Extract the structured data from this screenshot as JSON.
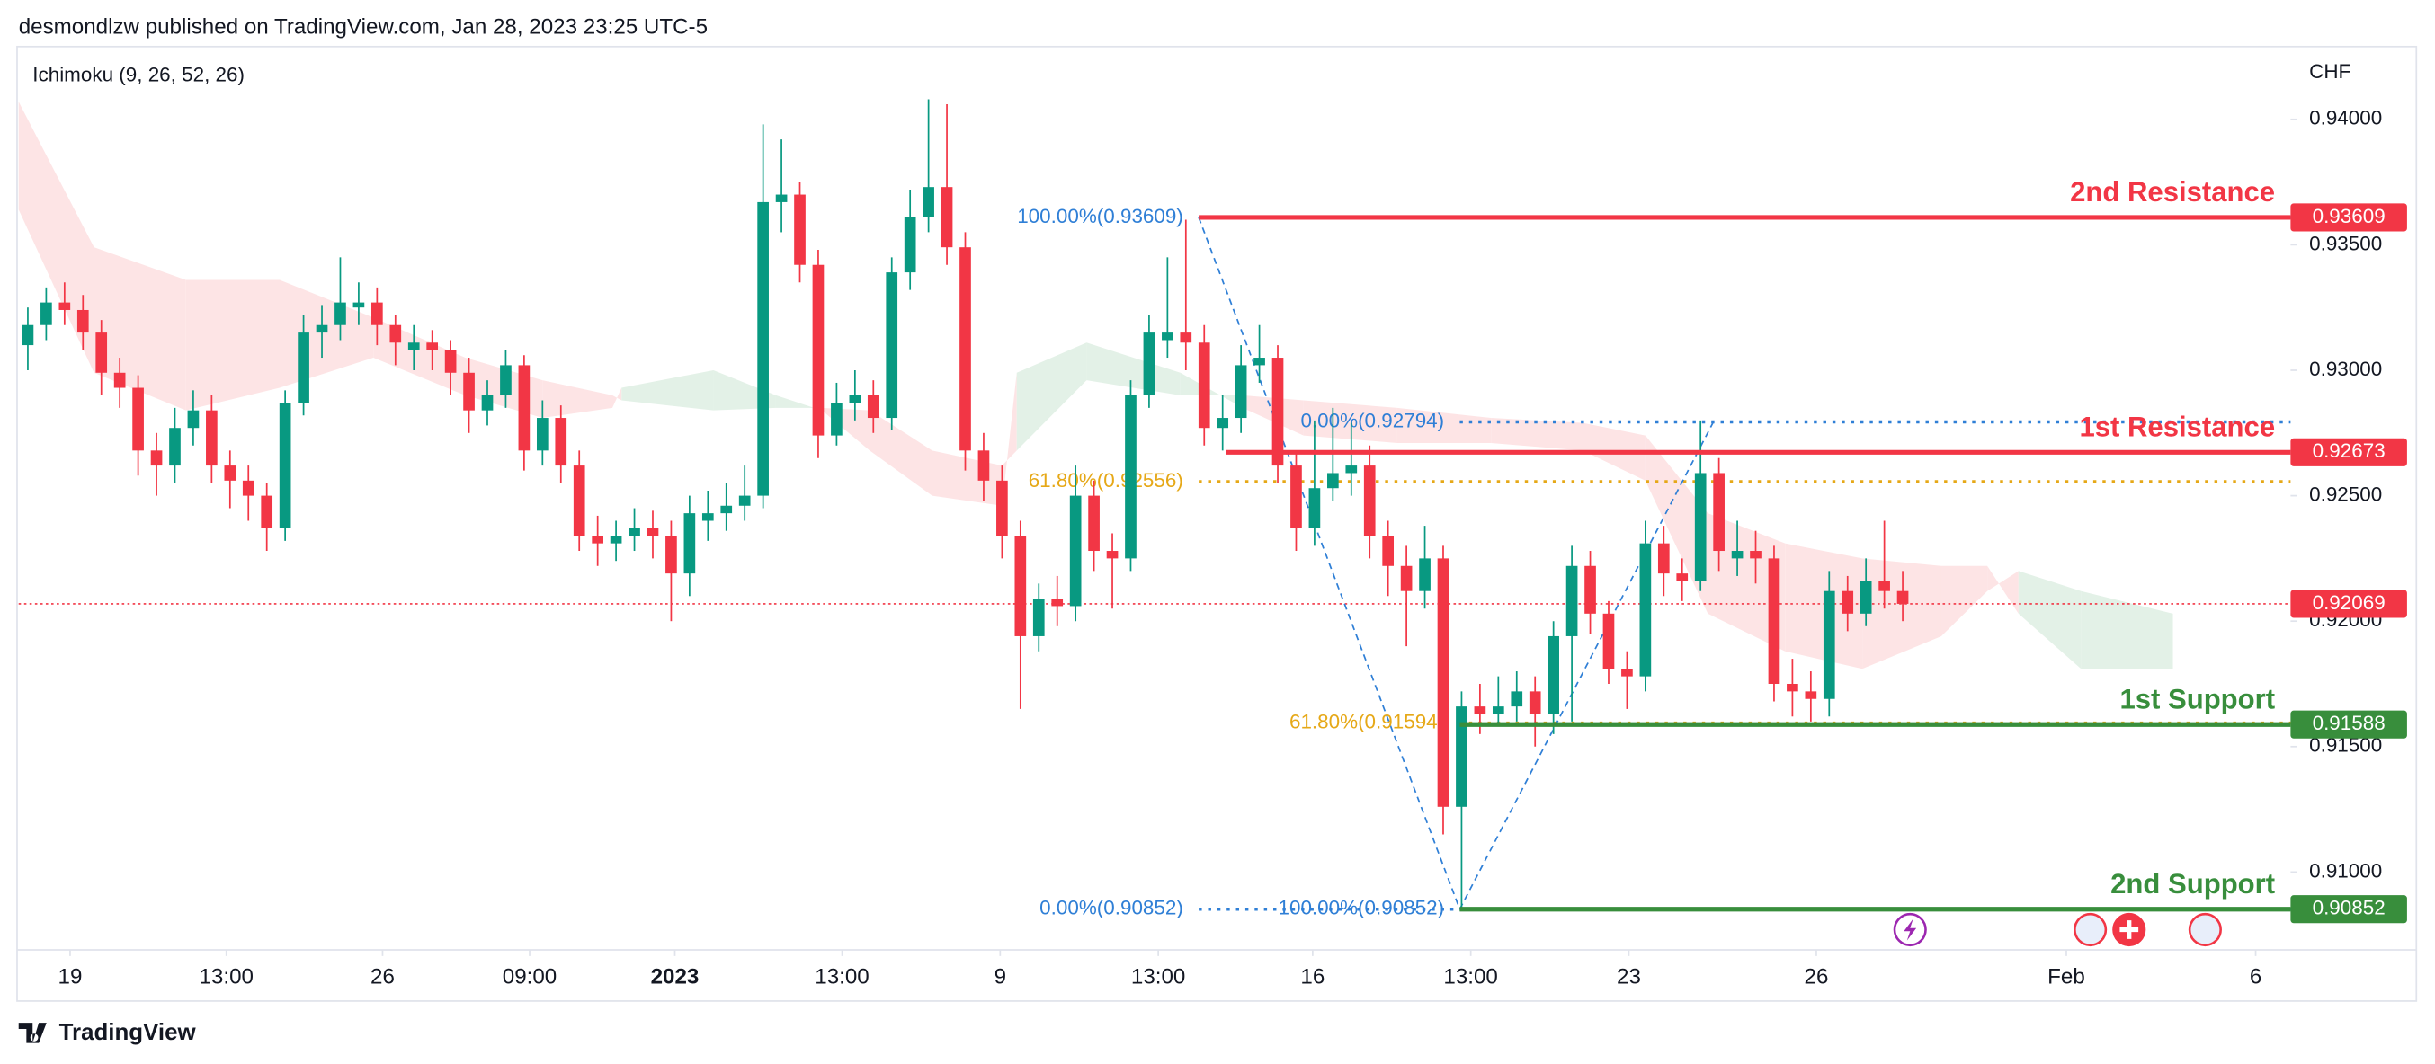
{
  "chart_data": {
    "type": "candlestick",
    "header": "desmondlzw published on TradingView.com, Jan 28, 2023 23:25 UTC-5",
    "indicator": "Ichimoku (9, 26, 52, 26)",
    "currency": "CHF",
    "brand": "TradingView",
    "up_color": "#089981",
    "down_color": "#f23645",
    "candles": [
      [
        0.931,
        0.9325,
        0.93,
        0.9318
      ],
      [
        0.9318,
        0.9333,
        0.9312,
        0.9327
      ],
      [
        0.9327,
        0.9335,
        0.9318,
        0.9324
      ],
      [
        0.9324,
        0.933,
        0.9308,
        0.9315
      ],
      [
        0.9315,
        0.932,
        0.929,
        0.9299
      ],
      [
        0.9299,
        0.9305,
        0.9285,
        0.9293
      ],
      [
        0.9293,
        0.9298,
        0.9258,
        0.9268
      ],
      [
        0.9268,
        0.9275,
        0.925,
        0.9262
      ],
      [
        0.9262,
        0.9285,
        0.9255,
        0.9277
      ],
      [
        0.9277,
        0.9292,
        0.927,
        0.9284
      ],
      [
        0.9284,
        0.929,
        0.9255,
        0.9262
      ],
      [
        0.9262,
        0.9268,
        0.9245,
        0.9256
      ],
      [
        0.9256,
        0.9262,
        0.924,
        0.925
      ],
      [
        0.925,
        0.9255,
        0.9228,
        0.9237
      ],
      [
        0.9237,
        0.9292,
        0.9232,
        0.9287
      ],
      [
        0.9287,
        0.9322,
        0.9282,
        0.9315
      ],
      [
        0.9315,
        0.9326,
        0.9305,
        0.9318
      ],
      [
        0.9318,
        0.9345,
        0.9312,
        0.9327
      ],
      [
        0.9325,
        0.9335,
        0.9318,
        0.9327
      ],
      [
        0.9327,
        0.9333,
        0.931,
        0.9318
      ],
      [
        0.9318,
        0.9322,
        0.9302,
        0.9311
      ],
      [
        0.9308,
        0.9318,
        0.93,
        0.9311
      ],
      [
        0.9311,
        0.9316,
        0.93,
        0.9308
      ],
      [
        0.9308,
        0.9312,
        0.929,
        0.9299
      ],
      [
        0.9299,
        0.9305,
        0.9275,
        0.9284
      ],
      [
        0.9284,
        0.9296,
        0.9278,
        0.929
      ],
      [
        0.929,
        0.9308,
        0.9285,
        0.9302
      ],
      [
        0.9302,
        0.9306,
        0.926,
        0.9268
      ],
      [
        0.9268,
        0.9288,
        0.9262,
        0.9281
      ],
      [
        0.9281,
        0.9286,
        0.9255,
        0.9262
      ],
      [
        0.9262,
        0.9268,
        0.9228,
        0.9234
      ],
      [
        0.9234,
        0.9242,
        0.9222,
        0.9231
      ],
      [
        0.9231,
        0.924,
        0.9224,
        0.9234
      ],
      [
        0.9234,
        0.9245,
        0.9228,
        0.9237
      ],
      [
        0.9237,
        0.9244,
        0.9225,
        0.9234
      ],
      [
        0.9234,
        0.924,
        0.92,
        0.9219
      ],
      [
        0.9219,
        0.925,
        0.921,
        0.9243
      ],
      [
        0.924,
        0.9252,
        0.9232,
        0.9243
      ],
      [
        0.9243,
        0.9255,
        0.9236,
        0.9246
      ],
      [
        0.9246,
        0.9262,
        0.924,
        0.925
      ],
      [
        0.925,
        0.9398,
        0.9245,
        0.9367
      ],
      [
        0.9367,
        0.9392,
        0.9355,
        0.937
      ],
      [
        0.937,
        0.9375,
        0.9335,
        0.9342
      ],
      [
        0.9342,
        0.9348,
        0.9265,
        0.9274
      ],
      [
        0.9274,
        0.9295,
        0.927,
        0.9287
      ],
      [
        0.9287,
        0.93,
        0.928,
        0.929
      ],
      [
        0.929,
        0.9296,
        0.9275,
        0.9281
      ],
      [
        0.9281,
        0.9345,
        0.9276,
        0.9339
      ],
      [
        0.9339,
        0.9372,
        0.9332,
        0.9361
      ],
      [
        0.9361,
        0.9408,
        0.9355,
        0.9373
      ],
      [
        0.9373,
        0.9406,
        0.9342,
        0.9349
      ],
      [
        0.9349,
        0.9355,
        0.926,
        0.9268
      ],
      [
        0.9268,
        0.9275,
        0.9248,
        0.9256
      ],
      [
        0.9256,
        0.9262,
        0.9225,
        0.9234
      ],
      [
        0.9234,
        0.924,
        0.9165,
        0.9194
      ],
      [
        0.9194,
        0.9215,
        0.9188,
        0.9209
      ],
      [
        0.9209,
        0.9218,
        0.9198,
        0.9206
      ],
      [
        0.9206,
        0.9262,
        0.92,
        0.925
      ],
      [
        0.925,
        0.9256,
        0.922,
        0.9228
      ],
      [
        0.9228,
        0.9235,
        0.9205,
        0.9225
      ],
      [
        0.9225,
        0.9296,
        0.922,
        0.929
      ],
      [
        0.929,
        0.9322,
        0.9285,
        0.9315
      ],
      [
        0.9312,
        0.9345,
        0.9305,
        0.9315
      ],
      [
        0.9315,
        0.936,
        0.93,
        0.9311
      ],
      [
        0.9311,
        0.9318,
        0.927,
        0.9277
      ],
      [
        0.9277,
        0.929,
        0.9268,
        0.9281
      ],
      [
        0.9281,
        0.931,
        0.9275,
        0.9302
      ],
      [
        0.9302,
        0.9318,
        0.9295,
        0.9305
      ],
      [
        0.9305,
        0.931,
        0.9255,
        0.9262
      ],
      [
        0.9262,
        0.9268,
        0.9228,
        0.9237
      ],
      [
        0.9237,
        0.928,
        0.923,
        0.9253
      ],
      [
        0.9253,
        0.9285,
        0.9248,
        0.9259
      ],
      [
        0.9259,
        0.9279,
        0.925,
        0.9262
      ],
      [
        0.9262,
        0.927,
        0.9225,
        0.9234
      ],
      [
        0.9234,
        0.924,
        0.921,
        0.9222
      ],
      [
        0.9222,
        0.923,
        0.919,
        0.9212
      ],
      [
        0.9212,
        0.9238,
        0.9205,
        0.9225
      ],
      [
        0.9225,
        0.923,
        0.9115,
        0.9126
      ],
      [
        0.9126,
        0.9172,
        0.9085,
        0.9166
      ],
      [
        0.9166,
        0.9175,
        0.9155,
        0.9163
      ],
      [
        0.9163,
        0.9178,
        0.9158,
        0.9166
      ],
      [
        0.9166,
        0.918,
        0.916,
        0.9172
      ],
      [
        0.9172,
        0.9178,
        0.915,
        0.9163
      ],
      [
        0.9163,
        0.92,
        0.9155,
        0.9194
      ],
      [
        0.9194,
        0.923,
        0.916,
        0.9222
      ],
      [
        0.9222,
        0.9228,
        0.9195,
        0.9203
      ],
      [
        0.9203,
        0.9208,
        0.9175,
        0.9181
      ],
      [
        0.9181,
        0.9188,
        0.9165,
        0.9178
      ],
      [
        0.9178,
        0.924,
        0.9172,
        0.9231
      ],
      [
        0.9231,
        0.9238,
        0.921,
        0.9219
      ],
      [
        0.9219,
        0.9225,
        0.9208,
        0.9216
      ],
      [
        0.9216,
        0.928,
        0.9212,
        0.9259
      ],
      [
        0.9259,
        0.9265,
        0.922,
        0.9228
      ],
      [
        0.9225,
        0.924,
        0.9218,
        0.9228
      ],
      [
        0.9228,
        0.9236,
        0.9215,
        0.9225
      ],
      [
        0.9225,
        0.923,
        0.9168,
        0.9175
      ],
      [
        0.9175,
        0.9185,
        0.9162,
        0.9172
      ],
      [
        0.9172,
        0.918,
        0.916,
        0.9169
      ],
      [
        0.9169,
        0.922,
        0.9162,
        0.9212
      ],
      [
        0.9212,
        0.9218,
        0.9196,
        0.9203
      ],
      [
        0.9203,
        0.9225,
        0.9198,
        0.9216
      ],
      [
        0.9216,
        0.924,
        0.9205,
        0.9212
      ],
      [
        0.9212,
        0.922,
        0.92,
        0.92069
      ]
    ],
    "xlim": [
      -0.5,
      123.1
    ],
    "xticks": [
      {
        "value": 2.3,
        "label": "19"
      },
      {
        "value": 10.8,
        "label": "13:00"
      },
      {
        "value": 19.3,
        "label": "26"
      },
      {
        "value": 27.3,
        "label": "09:00"
      },
      {
        "value": 35.2,
        "label": "2023"
      },
      {
        "value": 44.3,
        "label": "13:00"
      },
      {
        "value": 52.9,
        "label": "9"
      },
      {
        "value": 61.5,
        "label": "13:00"
      },
      {
        "value": 69.9,
        "label": "16"
      },
      {
        "value": 78.5,
        "label": "13:00"
      },
      {
        "value": 87.1,
        "label": "23"
      },
      {
        "value": 97.3,
        "label": "26"
      },
      {
        "value": 110.9,
        "label": "Feb"
      },
      {
        "value": 121.2,
        "label": "6"
      }
    ],
    "ylim": [
      0.9069,
      0.9429
    ],
    "yticks": [
      {
        "value": 0.94,
        "label": "0.94000"
      },
      {
        "value": 0.935,
        "label": "0.93500"
      },
      {
        "value": 0.93,
        "label": "0.93000"
      },
      {
        "value": 0.925,
        "label": "0.92500"
      },
      {
        "value": 0.92,
        "label": "0.92000"
      },
      {
        "value": 0.915,
        "label": "0.91500"
      },
      {
        "value": 0.91,
        "label": "0.91000"
      }
    ],
    "last_price": 0.92069,
    "cloud": {
      "up_color": "#e3f1e7",
      "down_color": "#fde4e5",
      "x": [
        -0.5,
        3.6,
        8.6,
        13.7,
        18.8,
        23.8,
        28.0,
        31.8,
        32.3,
        37.3,
        40.7,
        43.2,
        45.8,
        49.2,
        53.0,
        53.8,
        57.6,
        62.7,
        66.1,
        69.4,
        74.5,
        79.6,
        84.6,
        88.0,
        91.4,
        95.6,
        99.8,
        104.1,
        106.6,
        108.3,
        111.7,
        116.7
      ],
      "span_a": [
        0.9364,
        0.9299,
        0.9284,
        0.9293,
        0.9305,
        0.929,
        0.9281,
        0.9285,
        0.9293,
        0.93,
        0.929,
        0.9284,
        0.9268,
        0.925,
        0.9246,
        0.9299,
        0.9311,
        0.9299,
        0.9285,
        0.9274,
        0.9271,
        0.9271,
        0.9268,
        0.9256,
        0.9203,
        0.9188,
        0.9181,
        0.9194,
        0.9212,
        0.922,
        0.9212,
        0.9203
      ],
      "span_b": [
        0.9407,
        0.9349,
        0.9336,
        0.9336,
        0.9321,
        0.9305,
        0.9296,
        0.929,
        0.9288,
        0.9284,
        0.9285,
        0.9285,
        0.9284,
        0.9268,
        0.9262,
        0.9268,
        0.9296,
        0.929,
        0.929,
        0.9288,
        0.9285,
        0.9281,
        0.9279,
        0.9274,
        0.9243,
        0.9231,
        0.9225,
        0.9222,
        0.9222,
        0.9203,
        0.9181,
        0.9181
      ]
    },
    "levels": [
      {
        "name": "2nd Resistance",
        "value": 0.93609,
        "start": 63.7,
        "color": "#f23645"
      },
      {
        "name": "1st Resistance",
        "value": 0.92673,
        "start": 65.2,
        "color": "#f23645"
      },
      {
        "name": "1st Support",
        "value": 0.91588,
        "start": 77.9,
        "color": "#388e3c"
      },
      {
        "name": "2nd Support",
        "value": 0.90852,
        "start": 77.9,
        "color": "#388e3c"
      }
    ],
    "fibs": [
      {
        "from": [
          63.7,
          0.93609
        ],
        "to": [
          77.9,
          0.90852
        ],
        "levels": [
          {
            "value": 0.93609,
            "label": "100.00%(0.93609)",
            "color": "#2f7fd6"
          },
          {
            "value": 0.92556,
            "label": "61.80%(0.92556)",
            "color": "#e6a817"
          },
          {
            "value": 0.90852,
            "label": "0.00%(0.90852)",
            "color": "#2f7fd6"
          }
        ]
      },
      {
        "from": [
          77.9,
          0.90852
        ],
        "to": [
          91.7,
          0.92794
        ],
        "levels": [
          {
            "value": 0.92794,
            "label": "0.00%(0.92794)",
            "color": "#2f7fd6"
          },
          {
            "value": 0.91594,
            "label": "61.80%(0.91594)",
            "color": "#e6a817"
          },
          {
            "value": 0.90852,
            "label": "100.00%(0.90852)",
            "color": "#2f7fd6"
          }
        ]
      }
    ]
  }
}
